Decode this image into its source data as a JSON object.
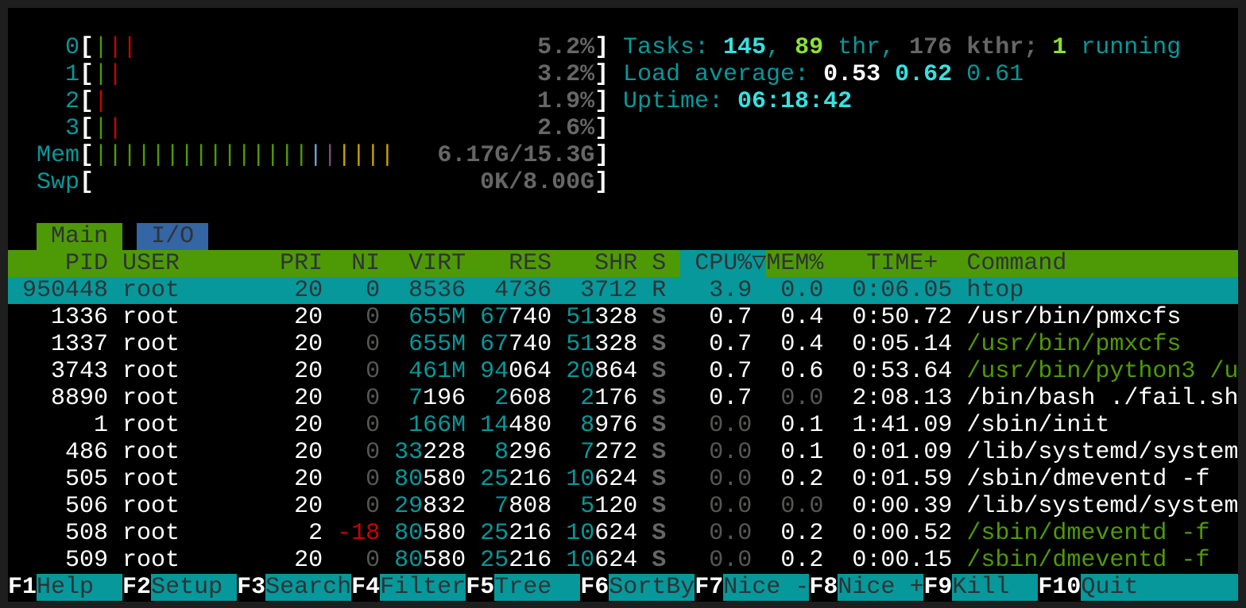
{
  "meters": {
    "cpus": [
      {
        "label": "0",
        "value": "5.2%",
        "bars": [
          {
            "color": "green",
            "count": 1
          },
          {
            "color": "red",
            "count": 2
          }
        ]
      },
      {
        "label": "1",
        "value": "3.2%",
        "bars": [
          {
            "color": "green",
            "count": 1
          },
          {
            "color": "red",
            "count": 1
          }
        ]
      },
      {
        "label": "2",
        "value": "1.9%",
        "bars": [
          {
            "color": "red",
            "count": 1
          }
        ]
      },
      {
        "label": "3",
        "value": "2.6%",
        "bars": [
          {
            "color": "green",
            "count": 1
          },
          {
            "color": "red",
            "count": 1
          }
        ]
      }
    ],
    "mem": {
      "label": "Mem",
      "value": "6.17G/15.3G",
      "bars": [
        {
          "color": "green",
          "count": 15
        },
        {
          "color": "blue",
          "count": 1
        },
        {
          "color": "magenta",
          "count": 1
        },
        {
          "color": "yellow",
          "count": 4
        }
      ]
    },
    "swp": {
      "label": "Swp",
      "value": "0K/8.00G",
      "bars": []
    }
  },
  "tasks": {
    "label": "Tasks:",
    "total": "145",
    "comma": ",",
    "threads": "89",
    "thr_label": "thr,",
    "kthreads": "176",
    "kthr_label": "kthr;",
    "running": "1",
    "running_label": "running"
  },
  "load": {
    "label": "Load average:",
    "one": "0.53",
    "five": "0.62",
    "fifteen": "0.61"
  },
  "uptime": {
    "label": "Uptime:",
    "value": "06:18:42"
  },
  "tabs": [
    {
      "label": "Main",
      "active": true
    },
    {
      "label": "I/O",
      "active": false
    }
  ],
  "columns": {
    "pid": "PID",
    "user": "USER",
    "pri": "PRI",
    "ni": "NI",
    "virt": "VIRT",
    "res": "RES",
    "shr": "SHR",
    "s": "S",
    "cpu": "CPU%",
    "sort_indicator": "▽",
    "mem": "MEM%",
    "time": "TIME+",
    "command": "Command"
  },
  "processes": [
    {
      "pid": "950448",
      "user": "root",
      "pri": "20",
      "ni": "0",
      "virt": "8536",
      "res": "4736",
      "shr": "3712",
      "s": "R",
      "cpu": "3.9",
      "mem": "0.0",
      "time": "0:06.05",
      "command": "htop",
      "selected": true,
      "thread": false
    },
    {
      "pid": "1336",
      "user": "root",
      "pri": "20",
      "ni": "0",
      "virt": "655M",
      "res": "67740",
      "shr": "51328",
      "s": "S",
      "cpu": "0.7",
      "mem": "0.4",
      "time": "0:50.72",
      "command": "/usr/bin/pmxcfs",
      "selected": false,
      "thread": false
    },
    {
      "pid": "1337",
      "user": "root",
      "pri": "20",
      "ni": "0",
      "virt": "655M",
      "res": "67740",
      "shr": "51328",
      "s": "S",
      "cpu": "0.7",
      "mem": "0.4",
      "time": "0:05.14",
      "command": "/usr/bin/pmxcfs",
      "selected": false,
      "thread": true
    },
    {
      "pid": "3743",
      "user": "root",
      "pri": "20",
      "ni": "0",
      "virt": "461M",
      "res": "94064",
      "shr": "20864",
      "s": "S",
      "cpu": "0.7",
      "mem": "0.6",
      "time": "0:53.64",
      "command": "/usr/bin/python3 /u",
      "selected": false,
      "thread": true
    },
    {
      "pid": "8890",
      "user": "root",
      "pri": "20",
      "ni": "0",
      "virt": "7196",
      "res": "2608",
      "shr": "2176",
      "s": "S",
      "cpu": "0.7",
      "mem": "0.0",
      "time": "2:08.13",
      "command": "/bin/bash ./fail.sh",
      "selected": false,
      "thread": false
    },
    {
      "pid": "1",
      "user": "root",
      "pri": "20",
      "ni": "0",
      "virt": "166M",
      "res": "14480",
      "shr": "8976",
      "s": "S",
      "cpu": "0.0",
      "mem": "0.1",
      "time": "1:41.09",
      "command": "/sbin/init",
      "selected": false,
      "thread": false
    },
    {
      "pid": "486",
      "user": "root",
      "pri": "20",
      "ni": "0",
      "virt": "33228",
      "res": "8296",
      "shr": "7272",
      "s": "S",
      "cpu": "0.0",
      "mem": "0.1",
      "time": "0:01.09",
      "command": "/lib/systemd/system",
      "selected": false,
      "thread": false
    },
    {
      "pid": "505",
      "user": "root",
      "pri": "20",
      "ni": "0",
      "virt": "80580",
      "res": "25216",
      "shr": "10624",
      "s": "S",
      "cpu": "0.0",
      "mem": "0.2",
      "time": "0:01.59",
      "command": "/sbin/dmeventd -f",
      "selected": false,
      "thread": false
    },
    {
      "pid": "506",
      "user": "root",
      "pri": "20",
      "ni": "0",
      "virt": "29832",
      "res": "7808",
      "shr": "5120",
      "s": "S",
      "cpu": "0.0",
      "mem": "0.0",
      "time": "0:00.39",
      "command": "/lib/systemd/system",
      "selected": false,
      "thread": false
    },
    {
      "pid": "508",
      "user": "root",
      "pri": "2",
      "ni": "-18",
      "virt": "80580",
      "res": "25216",
      "shr": "10624",
      "s": "S",
      "cpu": "0.0",
      "mem": "0.2",
      "time": "0:00.52",
      "command": "/sbin/dmeventd -f",
      "selected": false,
      "thread": true
    },
    {
      "pid": "509",
      "user": "root",
      "pri": "20",
      "ni": "0",
      "virt": "80580",
      "res": "25216",
      "shr": "10624",
      "s": "S",
      "cpu": "0.0",
      "mem": "0.2",
      "time": "0:00.15",
      "command": "/sbin/dmeventd -f",
      "selected": false,
      "thread": true
    }
  ],
  "function_keys": [
    {
      "key": "F1",
      "label": "Help"
    },
    {
      "key": "F2",
      "label": "Setup"
    },
    {
      "key": "F3",
      "label": "Search"
    },
    {
      "key": "F4",
      "label": "Filter"
    },
    {
      "key": "F5",
      "label": "Tree"
    },
    {
      "key": "F6",
      "label": "SortBy"
    },
    {
      "key": "F7",
      "label": "Nice -"
    },
    {
      "key": "F8",
      "label": "Nice +"
    },
    {
      "key": "F9",
      "label": "Kill"
    },
    {
      "key": "F10",
      "label": "Quit"
    }
  ]
}
